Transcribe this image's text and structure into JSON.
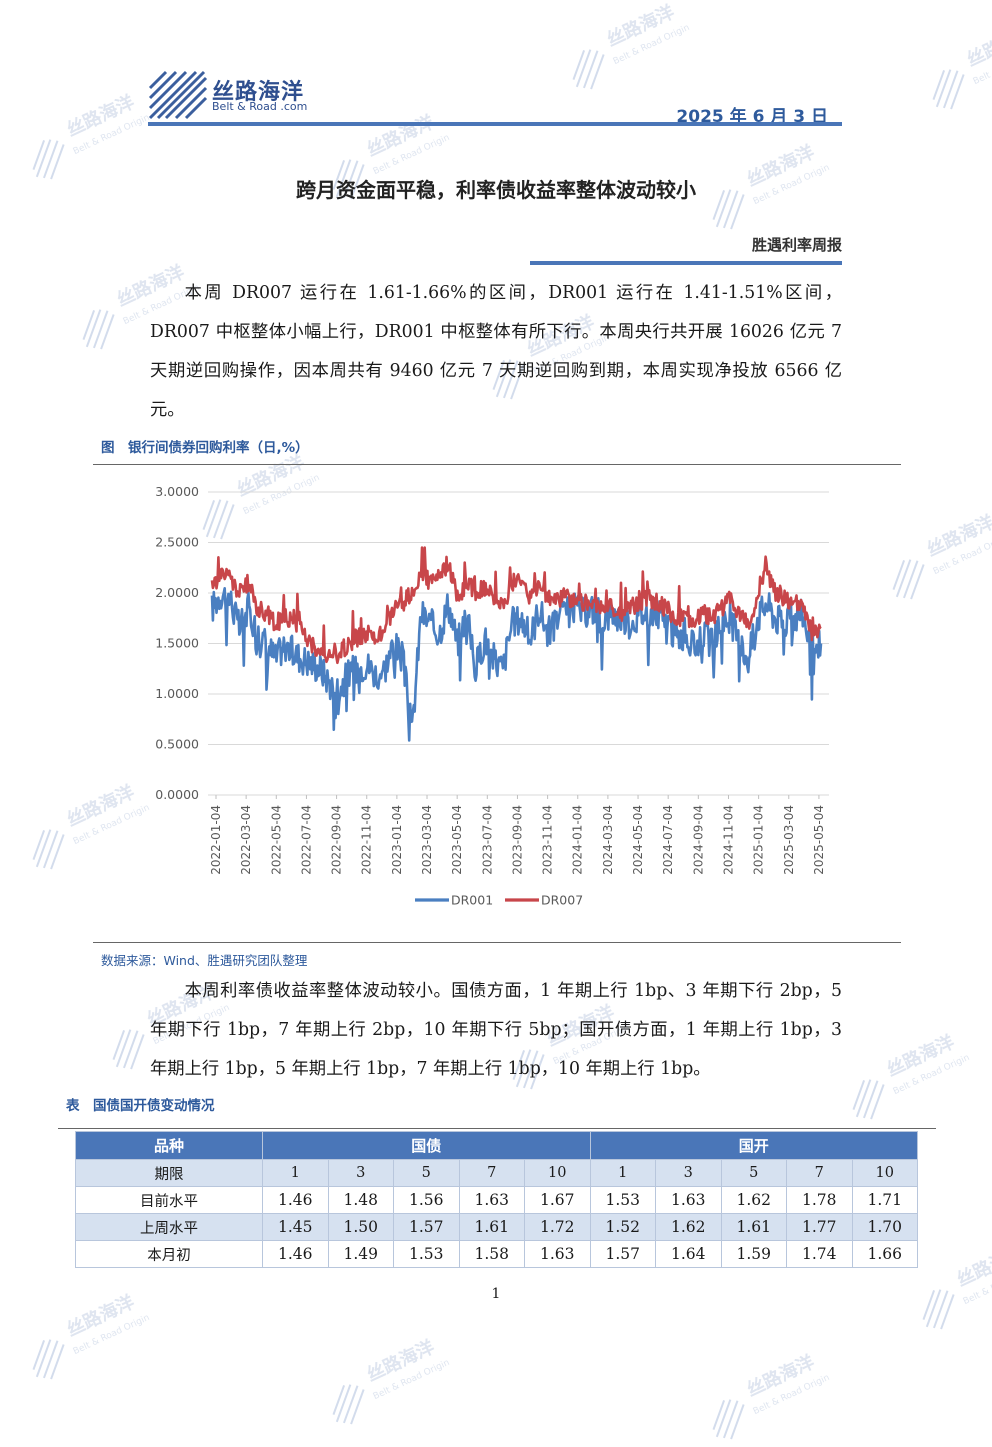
{
  "header": {
    "brand_cn": "丝路海洋",
    "brand_en": "Belt & Road .com",
    "date": "2025 年 6 月 3 日"
  },
  "title": "跨月资金面平稳，利率债收益率整体波动较小",
  "report_name": "胜遇利率周报",
  "paragraph1": "本周 DR007 运行在 1.61-1.66%的区间，DR001 运行在 1.41-1.51%区间，DR007 中枢整体小幅上行，DR001 中枢整体有所下行。本周央行共开展 16026 亿元 7 天期逆回购操作，因本周共有 9460 亿元 7 天期逆回购到期，本周实现净投放 6566 亿元。",
  "figure_caption": "图　银行间债券回购利率（日,%）",
  "source": "数据来源：Wind、胜遇研究团队整理",
  "paragraph2": "本周利率债收益率整体波动较小。国债方面，1 年期上行 1bp、3 年期下行 2bp，5 年期下行 1bp，7 年期上行 2bp，10 年期下行 5bp；国开债方面，1 年期上行 1bp，3 年期上行 1bp，5 年期上行 1bp，7 年期上行 1bp，10 年期上行 1bp。",
  "table_caption": "表　国债国开债变动情况",
  "table": {
    "h_variety": "品种",
    "h_gov": "国债",
    "h_cdb": "国开",
    "h_term": "期限",
    "terms": [
      "1",
      "3",
      "5",
      "7",
      "10",
      "1",
      "3",
      "5",
      "7",
      "10"
    ],
    "rows": [
      {
        "label": "目前水平",
        "values": [
          "1.46",
          "1.48",
          "1.56",
          "1.63",
          "1.67",
          "1.53",
          "1.63",
          "1.62",
          "1.78",
          "1.71"
        ]
      },
      {
        "label": "上周水平",
        "values": [
          "1.45",
          "1.50",
          "1.57",
          "1.61",
          "1.72",
          "1.52",
          "1.62",
          "1.61",
          "1.77",
          "1.70"
        ]
      },
      {
        "label": "本月初",
        "values": [
          "1.46",
          "1.49",
          "1.53",
          "1.58",
          "1.63",
          "1.57",
          "1.64",
          "1.59",
          "1.74",
          "1.66"
        ]
      }
    ]
  },
  "page_number": "1",
  "watermark": {
    "cn": "丝路海洋",
    "en": "Belt & Road Origin"
  },
  "colors": {
    "brand_blue": "#4a76b8",
    "dr001": "#4a7fc1",
    "dr007": "#c8464a"
  },
  "chart_data": {
    "type": "line",
    "y_ticks": [
      "3.0000",
      "2.5000",
      "2.0000",
      "1.5000",
      "1.0000",
      "0.5000",
      "0.0000"
    ],
    "ylim": [
      0,
      3
    ],
    "x_ticks": [
      "2022-01-04",
      "2022-03-04",
      "2022-05-04",
      "2022-07-04",
      "2022-09-04",
      "2022-11-04",
      "2023-01-04",
      "2023-03-04",
      "2023-05-04",
      "2023-07-04",
      "2023-09-04",
      "2023-11-04",
      "2024-01-04",
      "2024-03-04",
      "2024-05-04",
      "2024-07-04",
      "2024-09-04",
      "2024-11-04",
      "2025-01-04",
      "2025-03-04",
      "2025-05-04"
    ],
    "legend_position": "bottom",
    "grid": true,
    "series": [
      {
        "name": "DR001",
        "color": "#4a7fc1",
        "values": [
          1.85,
          2.0,
          1.95,
          1.65,
          1.85,
          1.6,
          1.5,
          1.35,
          1.5,
          1.4,
          1.35,
          1.3,
          1.25,
          1.1,
          1.05,
          1.2,
          1.25,
          1.3,
          1.2,
          1.25,
          1.5,
          1.35,
          0.6,
          1.8,
          1.7,
          1.6,
          1.9,
          1.5,
          1.8,
          1.25,
          1.55,
          1.35,
          1.25,
          1.7,
          1.75,
          1.55,
          1.85,
          1.6,
          1.75,
          1.8,
          1.85,
          1.8,
          1.85,
          1.75,
          1.8,
          1.75,
          1.7,
          1.8,
          1.8,
          1.8,
          1.75,
          1.55,
          1.6,
          1.45,
          1.6,
          1.5,
          1.7,
          1.75,
          1.5,
          1.35,
          1.75,
          1.9,
          1.75,
          1.7,
          1.75,
          1.8,
          1.45,
          1.5
        ]
      },
      {
        "name": "DR007",
        "color": "#c8464a",
        "values": [
          2.05,
          2.2,
          2.15,
          2.0,
          2.1,
          1.85,
          1.8,
          1.7,
          1.75,
          1.75,
          1.6,
          1.5,
          1.4,
          1.35,
          1.4,
          1.5,
          1.55,
          1.6,
          1.55,
          1.6,
          1.85,
          1.9,
          2.0,
          2.2,
          2.1,
          2.15,
          2.3,
          1.95,
          2.1,
          2.0,
          2.05,
          1.95,
          1.85,
          2.1,
          2.15,
          1.95,
          2.05,
          1.95,
          1.95,
          1.95,
          1.95,
          1.9,
          1.9,
          1.85,
          1.85,
          1.8,
          1.85,
          1.9,
          1.95,
          1.9,
          1.85,
          1.75,
          1.75,
          1.7,
          1.8,
          1.75,
          1.85,
          1.95,
          1.8,
          1.7,
          1.9,
          2.25,
          2.0,
          1.95,
          1.9,
          1.85,
          1.6,
          1.65
        ]
      }
    ]
  }
}
